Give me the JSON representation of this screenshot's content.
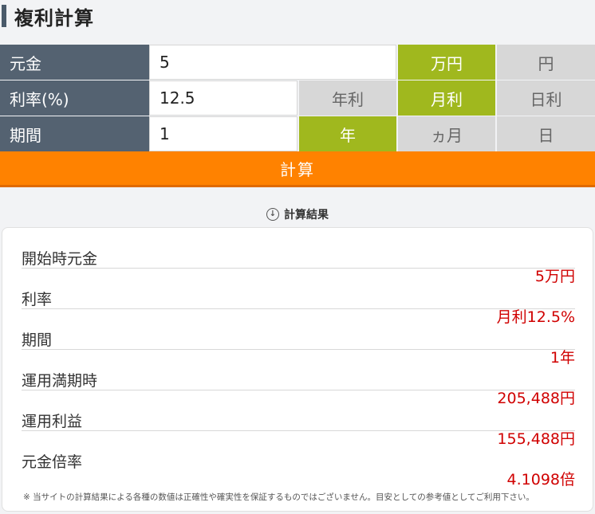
{
  "title": "複利計算",
  "form": {
    "principal": {
      "label": "元金",
      "value": "5",
      "units": [
        "万円",
        "円"
      ],
      "selected_unit": "万円"
    },
    "rate": {
      "label": "利率(%)",
      "value": "12.5",
      "units": [
        "年利",
        "月利",
        "日利"
      ],
      "selected_unit": "月利"
    },
    "period": {
      "label": "期間",
      "value": "1",
      "units": [
        "年",
        "ヵ月",
        "日"
      ],
      "selected_unit": "年"
    }
  },
  "calc_button": "計算",
  "result_heading": "計算結果",
  "results": [
    {
      "label": "開始時元金",
      "value": "5万円"
    },
    {
      "label": "利率",
      "value": "月利12.5%"
    },
    {
      "label": "期間",
      "value": "1年"
    },
    {
      "label": "運用満期時",
      "value": "205,488円"
    },
    {
      "label": "運用利益",
      "value": "155,488円"
    },
    {
      "label": "元金倍率",
      "value": "4.1098倍"
    }
  ],
  "note": "※ 当サイトの計算結果による各種の数値は正確性や確実性を保証するものではございません。目安としての参考値としてご利用下さい。",
  "colors": {
    "label_bg": "#546271",
    "selected": "#a0b81e",
    "unselected": "#d7d7d7",
    "button": "#ff8200",
    "result_value": "#d00000"
  }
}
